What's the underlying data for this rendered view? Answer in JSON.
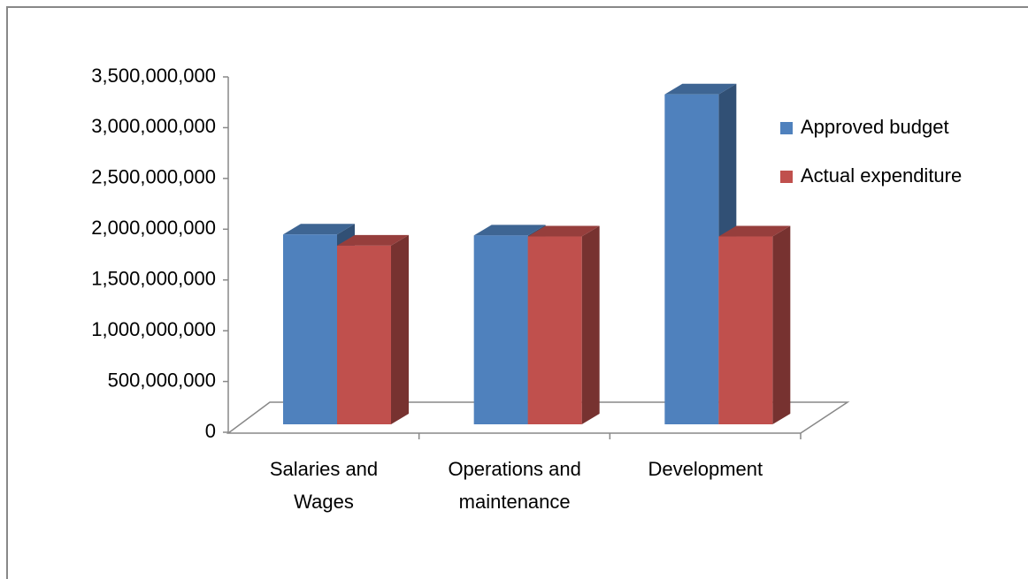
{
  "chart_data": {
    "type": "bar3d",
    "categories": [
      "Salaries and Wages",
      "Operations and maintenance",
      "Development"
    ],
    "series": [
      {
        "name": "Approved budget",
        "color": "#4f81bd",
        "values": [
          1870000000,
          1860000000,
          3250000000
        ]
      },
      {
        "name": "Actual expenditure",
        "color": "#c0504d",
        "values": [
          1760000000,
          1850000000,
          1850000000
        ]
      }
    ],
    "ylim": [
      0,
      3500000000
    ],
    "yticks": [
      0,
      {
        "value": 500000000,
        "label": "500,000,000"
      },
      {
        "value": 1000000000,
        "label": "1,000,000,000"
      },
      {
        "value": 1500000000,
        "label": "1,500,000,000"
      },
      {
        "value": 2000000000,
        "label": "2,000,000,000"
      },
      {
        "value": 2500000000,
        "label": "2,500,000,000"
      },
      {
        "value": 3000000000,
        "label": "3,000,000,000"
      },
      {
        "value": 3500000000,
        "label": "3,500,000,000"
      }
    ],
    "legend": "right"
  }
}
